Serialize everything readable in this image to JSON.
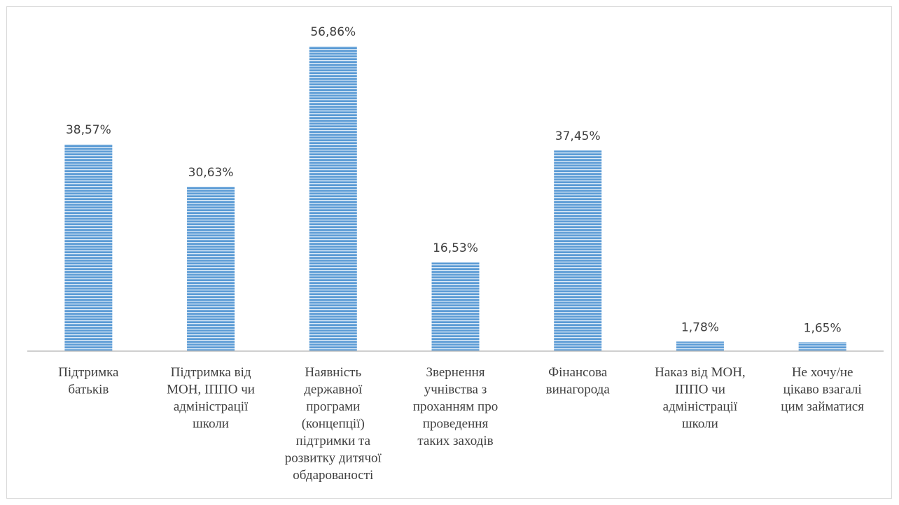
{
  "chart_data": {
    "type": "bar",
    "title": "",
    "xlabel": "",
    "ylabel": "",
    "ylim": [
      0,
      60
    ],
    "grid": false,
    "legend": "none",
    "bar_color": "#5B9BD5",
    "bar_stripe_color": "#DEEBF7",
    "axis_color": "#bfbfbf",
    "text_color": "#404040",
    "categories": [
      [
        "Підтримка",
        "батьків"
      ],
      [
        "Підтримка від",
        "МОН, ІППО чи",
        "адміністрації",
        "школи"
      ],
      [
        "Наявність",
        "державної",
        "програми",
        "(концепції)",
        "підтримки та",
        "розвитку дитячої",
        "обдарованості"
      ],
      [
        "Звернення",
        "учнівства з",
        "проханням про",
        "проведення",
        "таких заходів"
      ],
      [
        "Фінансова",
        "винагорода"
      ],
      [
        "Наказ від МОН,",
        "ІППО чи",
        "адміністрації",
        "школи"
      ],
      [
        "Не хочу/не",
        "цікаво взагалі",
        "цим займатися"
      ]
    ],
    "values": [
      38.57,
      30.63,
      56.86,
      16.53,
      37.45,
      1.78,
      1.65
    ],
    "value_labels": [
      "38,57%",
      "30,63%",
      "56,86%",
      "16,53%",
      "37,45%",
      "1,78%",
      "1,65%"
    ]
  }
}
